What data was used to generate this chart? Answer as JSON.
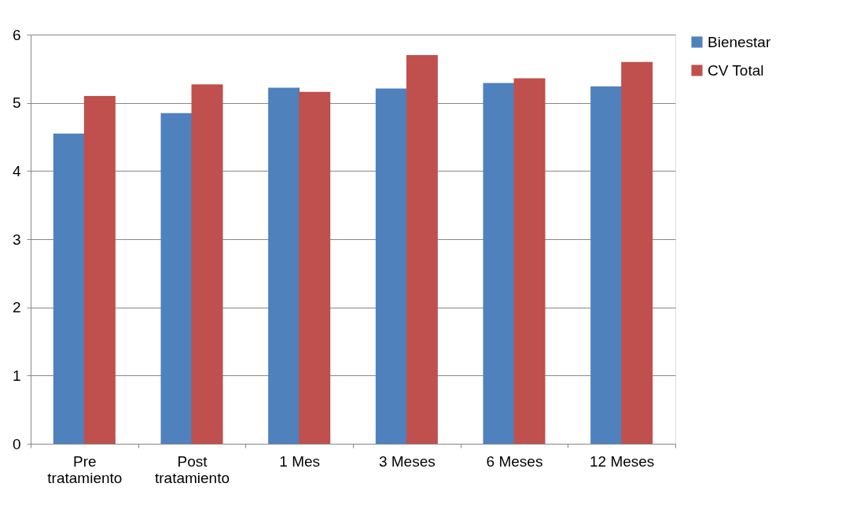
{
  "chart_data": {
    "type": "bar",
    "categories": [
      "Pre tratamiento",
      "Post tratamiento",
      "1 Mes",
      "3 Meses",
      "6 Meses",
      "12 Meses"
    ],
    "series": [
      {
        "name": "Bienestar",
        "color": "#4f81bd",
        "values": [
          4.55,
          4.85,
          5.22,
          5.21,
          5.29,
          5.24
        ]
      },
      {
        "name": "CV Total",
        "color": "#c0504d",
        "values": [
          5.1,
          5.27,
          5.16,
          5.7,
          5.36,
          5.6
        ]
      }
    ],
    "ylim": [
      0,
      6
    ],
    "yticks": [
      0,
      1,
      2,
      3,
      4,
      5,
      6
    ],
    "grid": "y",
    "legend": "right"
  }
}
